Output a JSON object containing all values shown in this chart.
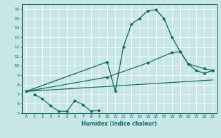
{
  "xlabel": "Humidex (Indice chaleur)",
  "xlim": [
    -0.5,
    23.5
  ],
  "ylim": [
    5,
    16.5
  ],
  "yticks": [
    5,
    6,
    7,
    8,
    9,
    10,
    11,
    12,
    13,
    14,
    15,
    16
  ],
  "xticks": [
    0,
    1,
    2,
    3,
    4,
    5,
    6,
    7,
    8,
    9,
    10,
    11,
    12,
    13,
    14,
    15,
    16,
    17,
    18,
    19,
    20,
    21,
    22,
    23
  ],
  "bg_color": "#c8e6e6",
  "line_color": "#1a6b6b",
  "line1_x": [
    0,
    10,
    11,
    12,
    13,
    14,
    15,
    16,
    17,
    18,
    19,
    20,
    21,
    22,
    23
  ],
  "line1_y": [
    7.3,
    10.4,
    7.3,
    12.0,
    14.4,
    15.0,
    15.8,
    15.9,
    15.0,
    13.0,
    11.5,
    10.2,
    9.5,
    9.2,
    9.5
  ],
  "line2_x": [
    0,
    10,
    15,
    18,
    19,
    20,
    22,
    23
  ],
  "line2_y": [
    7.3,
    8.8,
    10.3,
    11.4,
    11.5,
    10.2,
    9.7,
    9.5
  ],
  "line3_x": [
    0,
    23
  ],
  "line3_y": [
    7.3,
    8.5
  ],
  "line4_x": [
    1,
    2,
    3,
    4,
    5,
    6,
    7,
    8,
    9
  ],
  "line4_y": [
    7.0,
    6.5,
    5.8,
    5.2,
    5.2,
    6.3,
    5.9,
    5.2,
    5.3
  ]
}
